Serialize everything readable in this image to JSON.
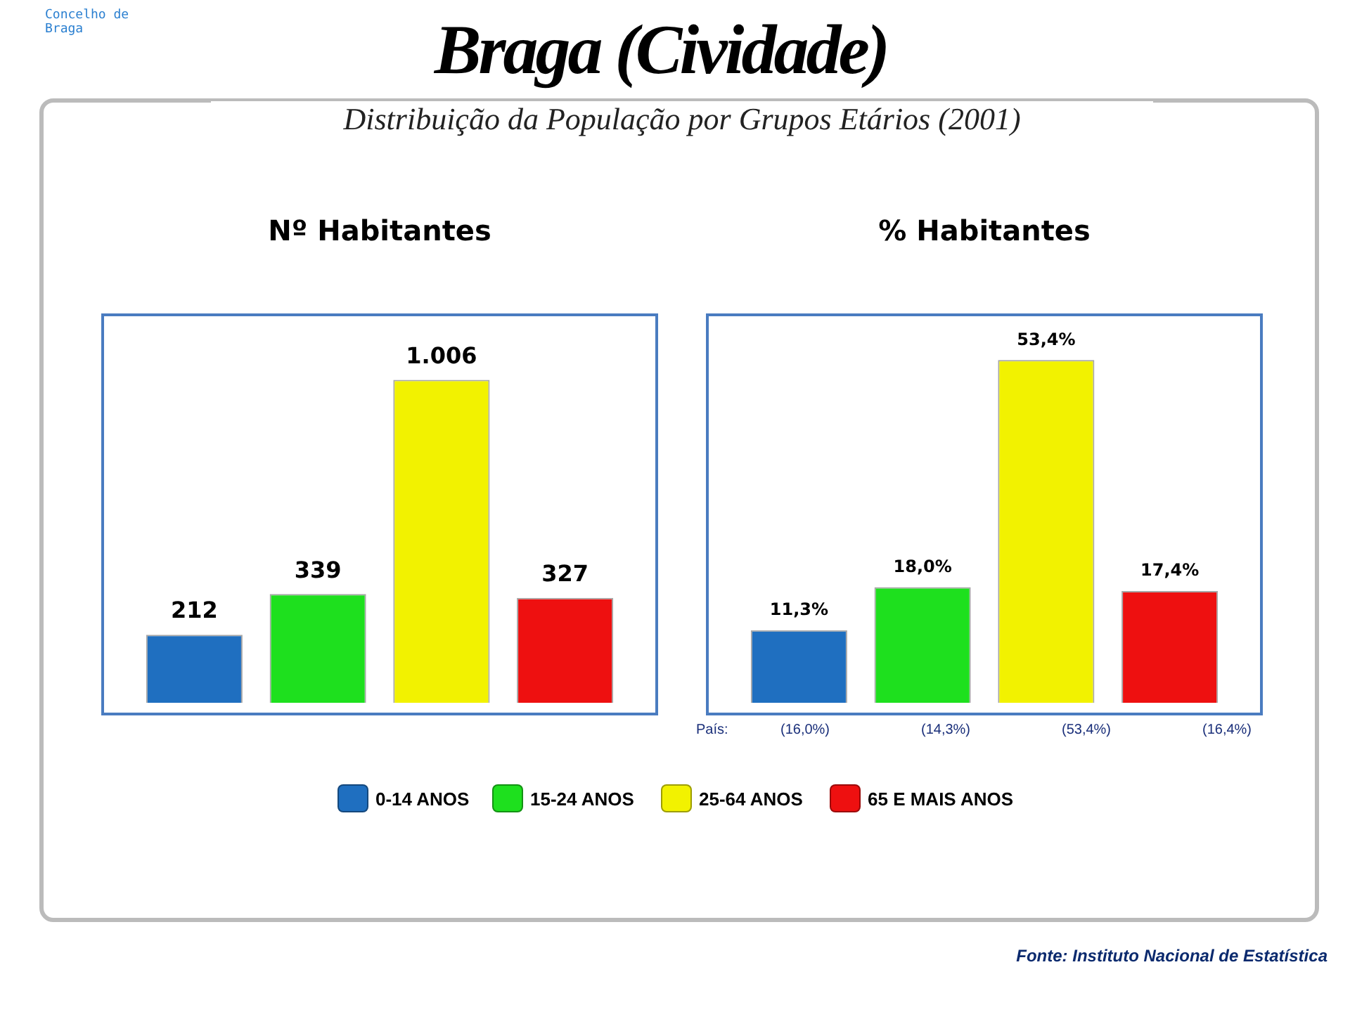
{
  "chart_data": [
    {
      "type": "bar",
      "title": "Nº Habitantes",
      "categories": [
        null
      ],
      "tick_labels": false,
      "legend": false,
      "annotations": [
        "Concelho de Braga",
        "Braga (Cividade)",
        "Distribuição da População por Grupos Etários (2001)"
      ],
      "series": [
        {
          "color": "#1f6fc0",
          "values": [
            212
          ],
          "value_labels": [
            "212"
          ]
        },
        {
          "color": "#1ee01e",
          "values": [
            339
          ],
          "value_labels": [
            "339"
          ]
        },
        {
          "color": "#f2f200",
          "values": [
            1006
          ],
          "value_labels": [
            "1.006"
          ]
        },
        {
          "color": "#ee1010",
          "values": [
            327
          ],
          "value_labels": [
            "327"
          ]
        }
      ]
    },
    {
      "type": "bar",
      "title": "% Habitantes",
      "categories": [
        null
      ],
      "tick_labels": false,
      "legend": "bottom",
      "annotations": [
        "País:",
        "(16,0%)",
        "(14,3%)",
        "(53,4%)",
        "(16,4%)",
        "Fonte: Instituto Nacional de Estatística"
      ],
      "series": [
        {
          "name": "0-14 ANOS",
          "color": "#1f6fc0",
          "values": [
            11.3
          ],
          "value_labels": [
            "11,3%"
          ]
        },
        {
          "name": "15-24 ANOS",
          "color": "#1ee01e",
          "values": [
            18.0
          ],
          "value_labels": [
            "18,0%"
          ]
        },
        {
          "name": "25-64 ANOS",
          "color": "#f2f200",
          "values": [
            53.4
          ],
          "value_labels": [
            "53,4%"
          ]
        },
        {
          "name": "65 E MAIS ANOS",
          "color": "#ee1010",
          "values": [
            17.4
          ],
          "value_labels": [
            "17,4%"
          ]
        }
      ]
    }
  ]
}
